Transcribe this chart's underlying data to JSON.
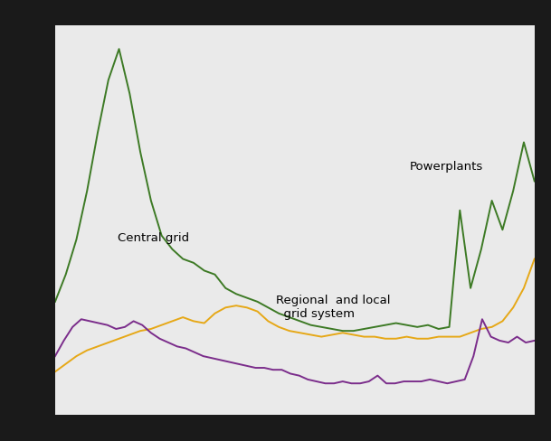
{
  "green_line": [
    5.8,
    7.2,
    9.0,
    11.5,
    14.5,
    17.2,
    18.8,
    16.5,
    13.5,
    11.0,
    9.2,
    8.5,
    8.0,
    7.8,
    7.4,
    7.2,
    6.5,
    6.2,
    6.0,
    5.8,
    5.5,
    5.2,
    5.0,
    4.8,
    4.6,
    4.5,
    4.4,
    4.3,
    4.3,
    4.4,
    4.5,
    4.6,
    4.7,
    4.6,
    4.5,
    4.6,
    4.4,
    4.5,
    10.5,
    6.5,
    8.5,
    11.0,
    9.5,
    11.5,
    14.0,
    12.0
  ],
  "orange_line": [
    2.2,
    2.6,
    3.0,
    3.3,
    3.5,
    3.7,
    3.9,
    4.1,
    4.3,
    4.4,
    4.6,
    4.8,
    5.0,
    4.8,
    4.7,
    5.2,
    5.5,
    5.6,
    5.5,
    5.3,
    4.8,
    4.5,
    4.3,
    4.2,
    4.1,
    4.0,
    4.1,
    4.2,
    4.1,
    4.0,
    4.0,
    3.9,
    3.9,
    4.0,
    3.9,
    3.9,
    4.0,
    4.0,
    4.0,
    4.2,
    4.4,
    4.5,
    4.8,
    5.5,
    6.5,
    8.0
  ],
  "purple_line": [
    3.0,
    3.8,
    4.5,
    4.9,
    4.8,
    4.7,
    4.6,
    4.4,
    4.5,
    4.8,
    4.6,
    4.2,
    3.9,
    3.7,
    3.5,
    3.4,
    3.2,
    3.0,
    2.9,
    2.8,
    2.7,
    2.6,
    2.5,
    2.4,
    2.4,
    2.3,
    2.3,
    2.1,
    2.0,
    1.8,
    1.7,
    1.6,
    1.6,
    1.7,
    1.6,
    1.6,
    1.7,
    2.0,
    1.6,
    1.6,
    1.7,
    1.7,
    1.7,
    1.8,
    1.7,
    1.6,
    1.7,
    1.8,
    3.0,
    4.9,
    4.0,
    3.8,
    3.7,
    4.0,
    3.7,
    3.8
  ],
  "green_color": "#3d7a25",
  "orange_color": "#e6a817",
  "purple_color": "#7b2d8b",
  "plot_bg": "#eaeaea",
  "fig_bg": "#1a1a1a",
  "grid_color": "#ffffff",
  "annotation_central_grid": "Central grid",
  "annotation_powerplants": "Powerplants",
  "annotation_regional": "Regional  and local\n  grid system",
  "ylim_min": 0.0,
  "ylim_max": 20.0
}
